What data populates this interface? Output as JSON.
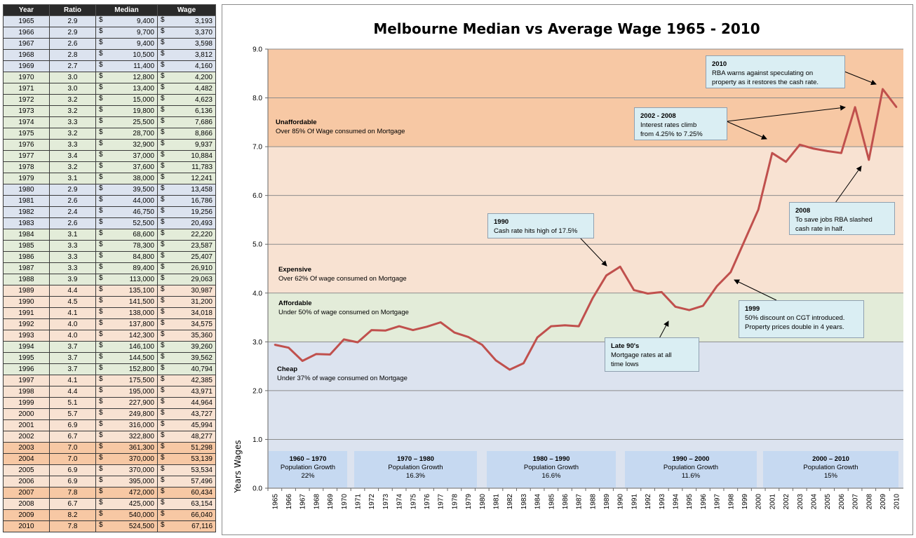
{
  "table": {
    "headers": [
      "Year",
      "Ratio",
      "Median",
      "Wage"
    ],
    "currency": "$",
    "rows": [
      {
        "year": "1965",
        "ratio": "2.9",
        "median": "9,400",
        "wage": "3,193",
        "zone": "cheap"
      },
      {
        "year": "1966",
        "ratio": "2.9",
        "median": "9,700",
        "wage": "3,370",
        "zone": "cheap"
      },
      {
        "year": "1967",
        "ratio": "2.6",
        "median": "9,400",
        "wage": "3,598",
        "zone": "cheap"
      },
      {
        "year": "1968",
        "ratio": "2.8",
        "median": "10,500",
        "wage": "3,812",
        "zone": "cheap"
      },
      {
        "year": "1969",
        "ratio": "2.7",
        "median": "11,400",
        "wage": "4,160",
        "zone": "cheap"
      },
      {
        "year": "1970",
        "ratio": "3.0",
        "median": "12,800",
        "wage": "4,200",
        "zone": "afford"
      },
      {
        "year": "1971",
        "ratio": "3.0",
        "median": "13,400",
        "wage": "4,482",
        "zone": "afford"
      },
      {
        "year": "1972",
        "ratio": "3.2",
        "median": "15,000",
        "wage": "4,623",
        "zone": "afford"
      },
      {
        "year": "1973",
        "ratio": "3.2",
        "median": "19,800",
        "wage": "6,136",
        "zone": "afford"
      },
      {
        "year": "1974",
        "ratio": "3.3",
        "median": "25,500",
        "wage": "7,686",
        "zone": "afford"
      },
      {
        "year": "1975",
        "ratio": "3.2",
        "median": "28,700",
        "wage": "8,866",
        "zone": "afford"
      },
      {
        "year": "1976",
        "ratio": "3.3",
        "median": "32,900",
        "wage": "9,937",
        "zone": "afford"
      },
      {
        "year": "1977",
        "ratio": "3.4",
        "median": "37,000",
        "wage": "10,884",
        "zone": "afford"
      },
      {
        "year": "1978",
        "ratio": "3.2",
        "median": "37,600",
        "wage": "11,783",
        "zone": "afford"
      },
      {
        "year": "1979",
        "ratio": "3.1",
        "median": "38,000",
        "wage": "12,241",
        "zone": "afford"
      },
      {
        "year": "1980",
        "ratio": "2.9",
        "median": "39,500",
        "wage": "13,458",
        "zone": "cheap"
      },
      {
        "year": "1981",
        "ratio": "2.6",
        "median": "44,000",
        "wage": "16,786",
        "zone": "cheap"
      },
      {
        "year": "1982",
        "ratio": "2.4",
        "median": "46,750",
        "wage": "19,256",
        "zone": "cheap"
      },
      {
        "year": "1983",
        "ratio": "2.6",
        "median": "52,500",
        "wage": "20,493",
        "zone": "cheap"
      },
      {
        "year": "1984",
        "ratio": "3.1",
        "median": "68,600",
        "wage": "22,220",
        "zone": "afford"
      },
      {
        "year": "1985",
        "ratio": "3.3",
        "median": "78,300",
        "wage": "23,587",
        "zone": "afford"
      },
      {
        "year": "1986",
        "ratio": "3.3",
        "median": "84,800",
        "wage": "25,407",
        "zone": "afford"
      },
      {
        "year": "1987",
        "ratio": "3.3",
        "median": "89,400",
        "wage": "26,910",
        "zone": "afford"
      },
      {
        "year": "1988",
        "ratio": "3.9",
        "median": "113,000",
        "wage": "29,063",
        "zone": "afford"
      },
      {
        "year": "1989",
        "ratio": "4.4",
        "median": "135,100",
        "wage": "30,987",
        "zone": "expens"
      },
      {
        "year": "1990",
        "ratio": "4.5",
        "median": "141,500",
        "wage": "31,200",
        "zone": "expens"
      },
      {
        "year": "1991",
        "ratio": "4.1",
        "median": "138,000",
        "wage": "34,018",
        "zone": "expens"
      },
      {
        "year": "1992",
        "ratio": "4.0",
        "median": "137,800",
        "wage": "34,575",
        "zone": "expens"
      },
      {
        "year": "1993",
        "ratio": "4.0",
        "median": "142,300",
        "wage": "35,360",
        "zone": "expens"
      },
      {
        "year": "1994",
        "ratio": "3.7",
        "median": "146,100",
        "wage": "39,260",
        "zone": "afford"
      },
      {
        "year": "1995",
        "ratio": "3.7",
        "median": "144,500",
        "wage": "39,562",
        "zone": "afford"
      },
      {
        "year": "1996",
        "ratio": "3.7",
        "median": "152,800",
        "wage": "40,794",
        "zone": "afford"
      },
      {
        "year": "1997",
        "ratio": "4.1",
        "median": "175,500",
        "wage": "42,385",
        "zone": "expens"
      },
      {
        "year": "1998",
        "ratio": "4.4",
        "median": "195,000",
        "wage": "43,971",
        "zone": "expens"
      },
      {
        "year": "1999",
        "ratio": "5.1",
        "median": "227,900",
        "wage": "44,964",
        "zone": "expens"
      },
      {
        "year": "2000",
        "ratio": "5.7",
        "median": "249,800",
        "wage": "43,727",
        "zone": "expens"
      },
      {
        "year": "2001",
        "ratio": "6.9",
        "median": "316,000",
        "wage": "45,994",
        "zone": "expens"
      },
      {
        "year": "2002",
        "ratio": "6.7",
        "median": "322,800",
        "wage": "48,277",
        "zone": "expens"
      },
      {
        "year": "2003",
        "ratio": "7.0",
        "median": "361,300",
        "wage": "51,298",
        "zone": "unaff"
      },
      {
        "year": "2004",
        "ratio": "7.0",
        "median": "370,000",
        "wage": "53,139",
        "zone": "unaff"
      },
      {
        "year": "2005",
        "ratio": "6.9",
        "median": "370,000",
        "wage": "53,534",
        "zone": "expens"
      },
      {
        "year": "2006",
        "ratio": "6.9",
        "median": "395,000",
        "wage": "57,496",
        "zone": "expens"
      },
      {
        "year": "2007",
        "ratio": "7.8",
        "median": "472,000",
        "wage": "60,434",
        "zone": "unaff"
      },
      {
        "year": "2008",
        "ratio": "6.7",
        "median": "425,000",
        "wage": "63,154",
        "zone": "expens"
      },
      {
        "year": "2009",
        "ratio": "8.2",
        "median": "540,000",
        "wage": "66,040",
        "zone": "unaff"
      },
      {
        "year": "2010",
        "ratio": "7.8",
        "median": "524,500",
        "wage": "67,116",
        "zone": "unaff"
      }
    ]
  },
  "chart_data": {
    "type": "line",
    "title": "Melbourne Median vs Average Wage 1965 - 2010",
    "xlabel": "",
    "ylabel": "Years Wages",
    "ylim": [
      0,
      9
    ],
    "yticks": [
      "0.0",
      "1.0",
      "2.0",
      "3.0",
      "4.0",
      "5.0",
      "6.0",
      "7.0",
      "8.0",
      "9.0"
    ],
    "grid": true,
    "line_color": "#c0504d",
    "x": [
      "1965",
      "1966",
      "1967",
      "1968",
      "1969",
      "1970",
      "1971",
      "1972",
      "1973",
      "1974",
      "1975",
      "1976",
      "1977",
      "1978",
      "1979",
      "1980",
      "1981",
      "1982",
      "1983",
      "1984",
      "1985",
      "1986",
      "1987",
      "1988",
      "1989",
      "1990",
      "1991",
      "1992",
      "1993",
      "1994",
      "1995",
      "1996",
      "1997",
      "1998",
      "1999",
      "2000",
      "2001",
      "2002",
      "2003",
      "2004",
      "2005",
      "2006",
      "2007",
      "2008",
      "2009",
      "2010"
    ],
    "series": [
      {
        "values": [
          2.94,
          2.88,
          2.61,
          2.75,
          2.74,
          3.05,
          2.99,
          3.24,
          3.23,
          3.32,
          3.24,
          3.31,
          3.4,
          3.19,
          3.1,
          2.94,
          2.62,
          2.43,
          2.56,
          3.09,
          3.32,
          3.34,
          3.32,
          3.89,
          4.36,
          4.54,
          4.06,
          3.99,
          4.02,
          3.72,
          3.65,
          3.74,
          4.14,
          4.43,
          5.07,
          5.71,
          6.87,
          6.69,
          7.04,
          6.96,
          6.91,
          6.87,
          7.81,
          6.73,
          8.18,
          7.81
        ]
      }
    ],
    "zones": [
      {
        "name": "Cheap",
        "desc": "Under 37% of wage consumed on Mortgage",
        "from": 0,
        "to": 3,
        "color": "#dce3ef"
      },
      {
        "name": "Affordable",
        "desc": "Under 50% of wage consumed on Mortgage",
        "from": 3,
        "to": 4,
        "color": "#e3ecd9"
      },
      {
        "name": "Expensive",
        "desc": "Over 62% Of wage consumed on Mortgage",
        "from": 4,
        "to": 7,
        "color": "#f8e2d2"
      },
      {
        "name": "Unaffordable",
        "desc": "Over 85% Of Wage consumed on Mortgage",
        "from": 7,
        "to": 9,
        "color": "#f7c8a4"
      }
    ],
    "annotations": [
      {
        "title": "2010",
        "lines": [
          "RBA warns against speculating on",
          "property as it restores the cash rate."
        ]
      },
      {
        "title": "2002 - 2008",
        "lines": [
          "Interest rates climb",
          "from 4.25% to 7.25%"
        ]
      },
      {
        "title": "2008",
        "lines": [
          "To save jobs RBA slashed",
          "cash rate in half."
        ]
      },
      {
        "title": "1990",
        "lines": [
          "Cash rate hits high of 17.5%"
        ]
      },
      {
        "title": "1999",
        "lines": [
          "50% discount on CGT introduced.",
          "Property prices double in 4 years."
        ]
      },
      {
        "title": "Late 90's",
        "lines": [
          "Mortgage rates at all",
          "time lows"
        ]
      }
    ],
    "population_growth": [
      {
        "period": "1960 – 1970",
        "label": "Population Growth",
        "value": "22%"
      },
      {
        "period": "1970 – 1980",
        "label": "Population Growth",
        "value": "16.3%"
      },
      {
        "period": "1980 – 1990",
        "label": "Population Growth",
        "value": "16.6%"
      },
      {
        "period": "1990 – 2000",
        "label": "Population Growth",
        "value": "11.6%"
      },
      {
        "period": "2000 – 2010",
        "label": "Population Growth",
        "value": "15%"
      }
    ]
  }
}
